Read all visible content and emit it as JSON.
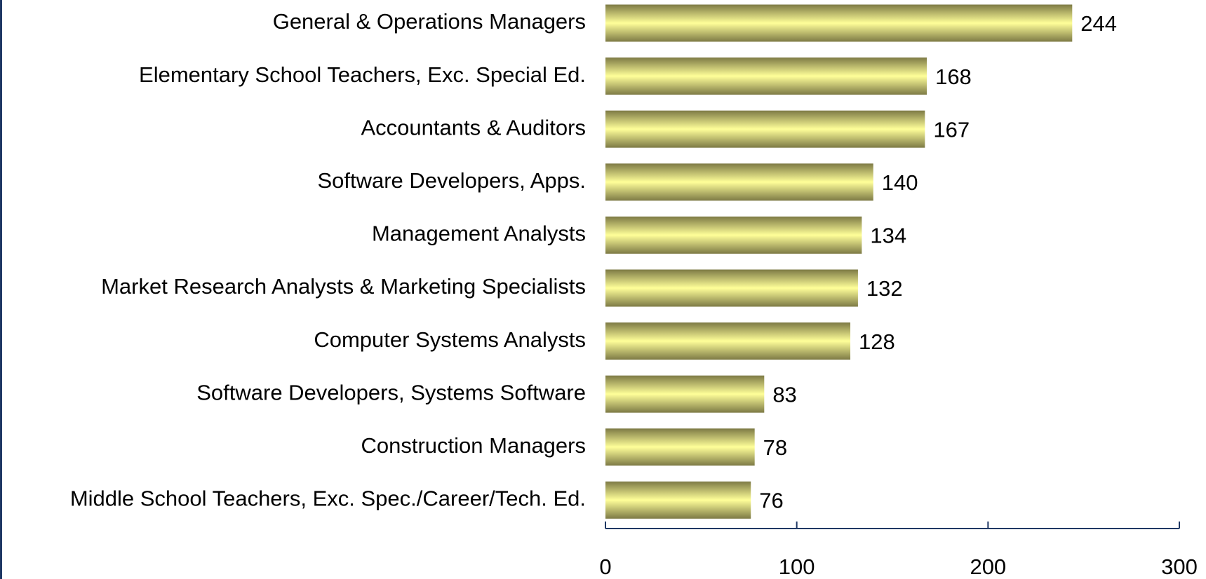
{
  "chart_data": {
    "type": "bar",
    "orientation": "horizontal",
    "categories": [
      "General & Operations Managers",
      "Elementary School Teachers, Exc. Special Ed.",
      "Accountants & Auditors",
      "Software Developers, Apps.",
      "Management Analysts",
      "Market Research Analysts & Marketing Specialists",
      "Computer Systems Analysts",
      "Software Developers, Systems Software",
      "Construction Managers",
      "Middle School Teachers, Exc. Spec./Career/Tech. Ed."
    ],
    "values": [
      244,
      168,
      167,
      140,
      134,
      132,
      128,
      83,
      78,
      76
    ],
    "color": "#ffff99",
    "xlim": [
      0,
      300
    ],
    "xticks": [
      0,
      100,
      200,
      300
    ]
  }
}
